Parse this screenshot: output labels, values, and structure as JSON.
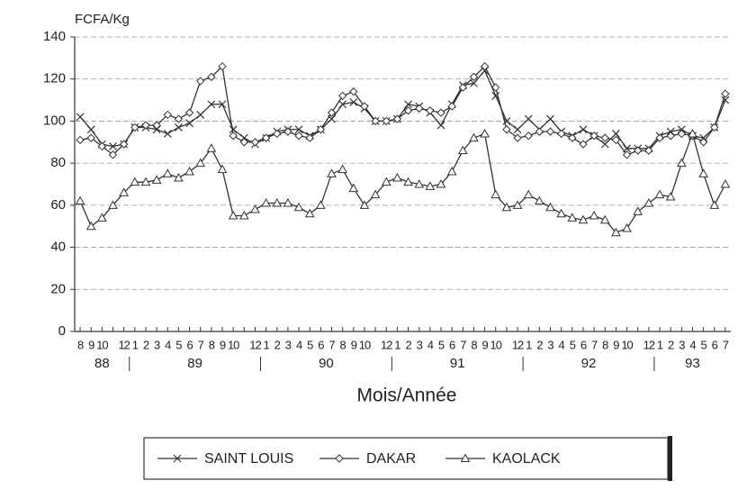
{
  "chart_data": {
    "type": "line",
    "y_axis_label": "FCFA/Kg",
    "x_axis_label": "Mois/Année",
    "categories": [
      "8",
      "9",
      "10",
      null,
      "12",
      "1",
      "2",
      "3",
      "4",
      "5",
      "6",
      "7",
      "8",
      "9",
      "10",
      null,
      "12",
      "1",
      "2",
      "3",
      "4",
      "5",
      "6",
      "7",
      "8",
      "9",
      "10",
      null,
      "12",
      "1",
      "2",
      "3",
      "4",
      "5",
      "6",
      "7",
      "8",
      "9",
      "10",
      null,
      "12",
      "1",
      "2",
      "3",
      "4",
      "5",
      "6",
      "7",
      "8",
      "9",
      "10",
      null,
      "12",
      "1",
      "2",
      "3",
      "4",
      "5",
      "6",
      "7"
    ],
    "years": [
      "88",
      "89",
      "90",
      "91",
      "92",
      "93"
    ],
    "ylim": [
      0,
      140
    ],
    "yticks": [
      0,
      20,
      40,
      60,
      80,
      100,
      120,
      140
    ],
    "grid": true,
    "legend": "bottom",
    "series": [
      {
        "name": "SAINT LOUIS",
        "color": "#333333",
        "marker": "x",
        "values": [
          102,
          96,
          89,
          88,
          89,
          97,
          97,
          96,
          94,
          97,
          99,
          103,
          108,
          108,
          96,
          92,
          89,
          92,
          95,
          96,
          96,
          93,
          96,
          101,
          108,
          109,
          106,
          100,
          100,
          101,
          108,
          107,
          104,
          98,
          108,
          117,
          118,
          124,
          112,
          100,
          96,
          101,
          96,
          101,
          95,
          93,
          96,
          93,
          89,
          94,
          87,
          87,
          87,
          93,
          95,
          96,
          93,
          92,
          97,
          110
        ]
      },
      {
        "name": "DAKAR",
        "color": "#333333",
        "marker": "diamond",
        "values": [
          91,
          92,
          88,
          84,
          89,
          97,
          98,
          98,
          103,
          101,
          104,
          119,
          121,
          126,
          93,
          90,
          90,
          92,
          94,
          95,
          93,
          92,
          96,
          104,
          112,
          114,
          107,
          100,
          100,
          101,
          105,
          106,
          105,
          104,
          107,
          116,
          121,
          126,
          116,
          96,
          92,
          93,
          95,
          95,
          94,
          92,
          89,
          93,
          92,
          91,
          84,
          86,
          86,
          92,
          93,
          94,
          93,
          90,
          97,
          113
        ]
      },
      {
        "name": "KAOLACK",
        "color": "#333333",
        "marker": "triangle",
        "values": [
          62,
          50,
          54,
          60,
          66,
          71,
          71,
          72,
          75,
          73,
          76,
          80,
          87,
          77,
          55,
          55,
          58,
          61,
          61,
          61,
          59,
          56,
          60,
          75,
          77,
          68,
          60,
          65,
          71,
          73,
          71,
          70,
          69,
          70,
          76,
          86,
          92,
          94,
          65,
          59,
          60,
          65,
          62,
          59,
          56,
          54,
          53,
          55,
          53,
          47,
          49,
          57,
          61,
          65,
          64,
          80,
          94,
          75,
          60,
          70
        ]
      }
    ]
  }
}
